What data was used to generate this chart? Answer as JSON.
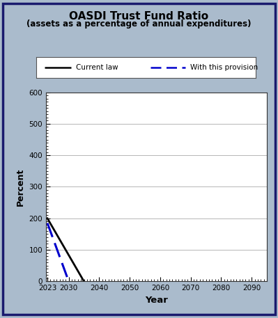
{
  "title_line1": "OASDI Trust Fund Ratio",
  "title_line2": "(assets as a percentage of annual expenditures)",
  "xlabel": "Year",
  "ylabel": "Percent",
  "ylim": [
    0,
    600
  ],
  "yticks": [
    0,
    100,
    200,
    300,
    400,
    500,
    600
  ],
  "xlim": [
    2022.5,
    2095
  ],
  "xticks": [
    2023,
    2030,
    2040,
    2050,
    2060,
    2070,
    2080,
    2090
  ],
  "background_outer": "#aabbcc",
  "background_plot": "#ffffff",
  "border_color": "#1a1a6e",
  "current_law": {
    "x": [
      2023,
      2035
    ],
    "y": [
      200,
      0
    ],
    "color": "#000000",
    "linewidth": 2.0,
    "linestyle": "solid",
    "label": "Current law"
  },
  "provision": {
    "x": [
      2023,
      2030
    ],
    "y": [
      185,
      0
    ],
    "color": "#0000cc",
    "linewidth": 2.2,
    "label": "With this provision"
  },
  "grid_color": "#000000",
  "grid_linewidth": 0.5,
  "grid_alpha": 0.4
}
